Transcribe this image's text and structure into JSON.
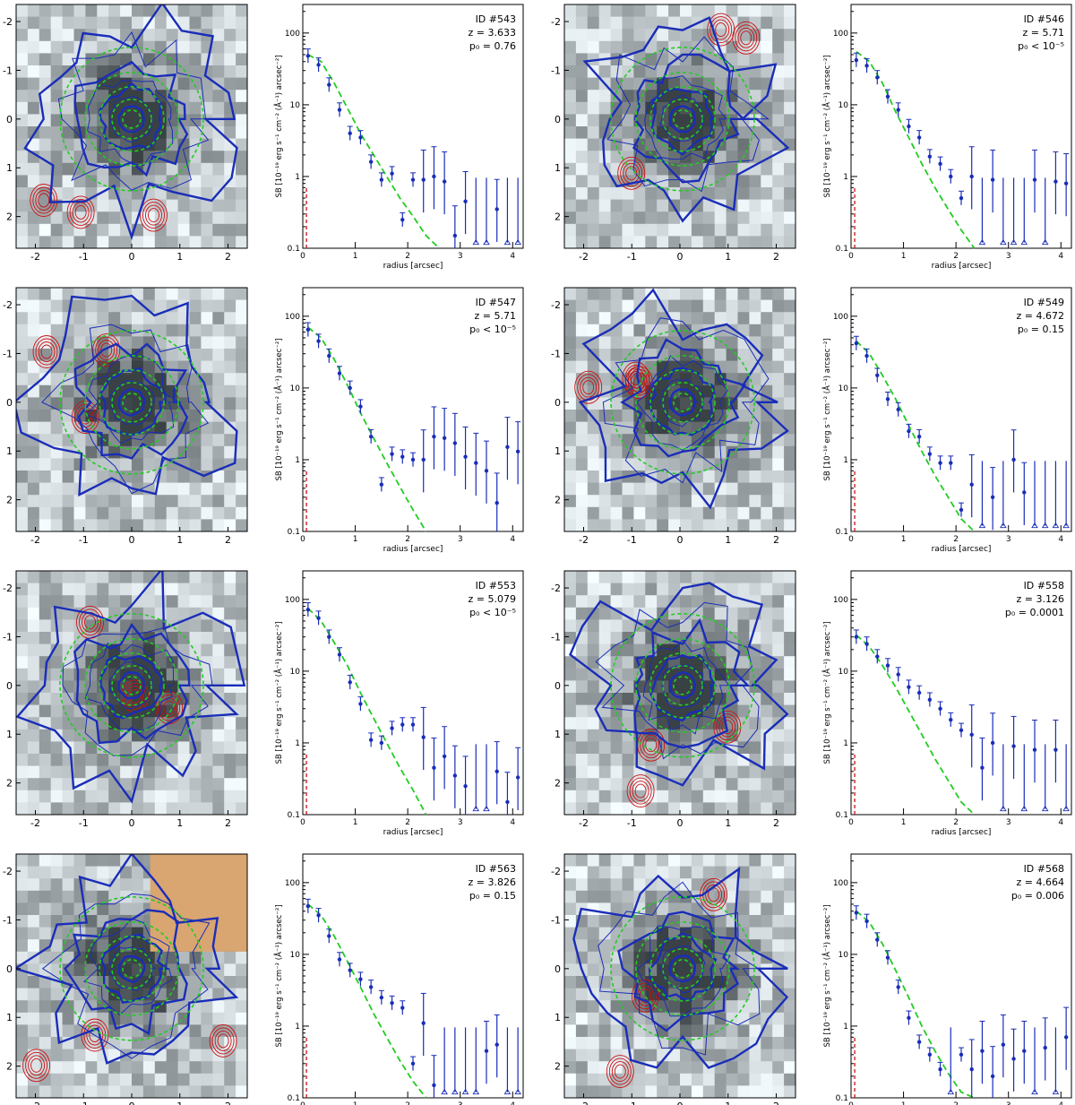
{
  "figure": {
    "image_axis_ticks": [
      "-2",
      "-1",
      "0",
      "1",
      "2"
    ],
    "profile_xlabel": "radius [arcsec]",
    "profile_ylabel": "SB [10⁻¹⁹ erg s⁻¹ cm⁻² (Å⁻¹) arcsec⁻²]",
    "profile_xticks": [
      "0",
      "1",
      "2",
      "3",
      "4"
    ],
    "profile_yticks": [
      "0.1",
      "1",
      "10",
      "100"
    ],
    "colors": {
      "lya_contour": "#1a2db8",
      "psf_model": "#22cc22",
      "continuum_contour": "#cc1111",
      "masked_region": "#d9a570",
      "data_points": "#1a2db8"
    }
  },
  "chart_data": [
    {
      "type": "scatter",
      "label_id": "ID #543",
      "label_z": "z = 3.633",
      "label_p0": "p₀ = 0.76",
      "xlabel": "radius [arcsec]",
      "ylabel": "SB",
      "xlim": [
        0,
        4.2
      ],
      "ylim": [
        0.1,
        250
      ],
      "yscale": "log",
      "x": [
        0.1,
        0.3,
        0.5,
        0.7,
        0.9,
        1.1,
        1.3,
        1.5,
        1.7,
        1.9,
        2.1,
        2.3,
        2.5,
        2.7,
        2.9,
        3.1,
        3.3,
        3.5,
        3.7,
        3.9,
        4.1
      ],
      "y": [
        48,
        36,
        19,
        8.5,
        4.0,
        3.5,
        1.6,
        0.9,
        1.1,
        0.25,
        0.9,
        0.9,
        1.0,
        0.85,
        0.15,
        0.45,
        0.12,
        0.12,
        0.35,
        0.12,
        0.12
      ],
      "psf": [
        50,
        40,
        20,
        9,
        4,
        2,
        1,
        0.5,
        0.28,
        0.15,
        0.1
      ]
    },
    {
      "type": "scatter",
      "label_id": "ID #546",
      "label_z": "z = 5.71",
      "label_p0": "p₀ < 10⁻⁵",
      "xlabel": "radius [arcsec]",
      "ylabel": "SB",
      "xlim": [
        0,
        4.2
      ],
      "ylim": [
        0.1,
        250
      ],
      "yscale": "log",
      "x": [
        0.1,
        0.3,
        0.5,
        0.7,
        0.9,
        1.1,
        1.3,
        1.5,
        1.7,
        1.9,
        2.1,
        2.3,
        2.5,
        2.7,
        2.9,
        3.1,
        3.3,
        3.5,
        3.7,
        3.9,
        4.1
      ],
      "y": [
        42,
        35,
        24,
        13,
        8.5,
        5.0,
        3.5,
        1.9,
        1.5,
        1.0,
        0.5,
        1.0,
        0.12,
        0.9,
        0.12,
        0.12,
        0.12,
        0.9,
        0.12,
        0.85,
        0.8
      ],
      "psf": [
        55,
        40,
        20,
        8,
        3.5,
        1.5,
        0.7,
        0.35,
        0.18,
        0.1
      ]
    },
    {
      "type": "scatter",
      "label_id": "ID #547",
      "label_z": "z = 5.71",
      "label_p0": "p₀ < 10⁻⁵",
      "xlabel": "radius [arcsec]",
      "ylabel": "SB",
      "xlim": [
        0,
        4.2
      ],
      "ylim": [
        0.1,
        250
      ],
      "yscale": "log",
      "x": [
        0.1,
        0.3,
        0.5,
        0.7,
        0.9,
        1.1,
        1.3,
        1.5,
        1.7,
        1.9,
        2.1,
        2.3,
        2.5,
        2.7,
        2.9,
        3.1,
        3.3,
        3.5,
        3.7,
        3.9,
        4.1
      ],
      "y": [
        65,
        45,
        28,
        16,
        10,
        5.5,
        2.1,
        0.45,
        1.2,
        1.1,
        1.0,
        1.0,
        2.1,
        2.0,
        1.7,
        1.1,
        0.9,
        0.7,
        0.25,
        1.5,
        1.3
      ],
      "psf": [
        70,
        50,
        25,
        11,
        4.5,
        2,
        0.9,
        0.42,
        0.2,
        0.1
      ]
    },
    {
      "type": "scatter",
      "label_id": "ID #549",
      "label_z": "z = 4.672",
      "label_p0": "p₀ = 0.15",
      "xlabel": "radius [arcsec]",
      "ylabel": "SB",
      "xlim": [
        0,
        4.2
      ],
      "ylim": [
        0.1,
        250
      ],
      "yscale": "log",
      "x": [
        0.1,
        0.3,
        0.5,
        0.7,
        0.9,
        1.1,
        1.3,
        1.5,
        1.7,
        1.9,
        2.1,
        2.3,
        2.5,
        2.7,
        2.9,
        3.1,
        3.3,
        3.5,
        3.7,
        3.9,
        4.1
      ],
      "y": [
        42,
        28,
        15,
        7,
        5,
        2.5,
        2.1,
        1.2,
        0.9,
        0.9,
        0.2,
        0.45,
        0.12,
        0.3,
        0.12,
        1.0,
        0.35,
        0.12,
        0.12,
        0.12,
        0.12
      ],
      "psf": [
        45,
        30,
        15,
        7,
        3,
        1.3,
        0.6,
        0.3,
        0.15,
        0.1
      ]
    },
    {
      "type": "scatter",
      "label_id": "ID #553",
      "label_z": "z = 5.079",
      "label_p0": "p₀ < 10⁻⁵",
      "xlabel": "radius [arcsec]",
      "ylabel": "SB",
      "xlim": [
        0,
        4.2
      ],
      "ylim": [
        0.1,
        250
      ],
      "yscale": "log",
      "x": [
        0.1,
        0.3,
        0.5,
        0.7,
        0.9,
        1.1,
        1.3,
        1.5,
        1.7,
        1.9,
        2.1,
        2.3,
        2.5,
        2.7,
        2.9,
        3.1,
        3.3,
        3.5,
        3.7,
        3.9,
        4.1
      ],
      "y": [
        72,
        55,
        30,
        17,
        7,
        3.5,
        1.1,
        1.0,
        1.6,
        1.8,
        1.8,
        1.2,
        0.45,
        0.65,
        0.35,
        0.25,
        0.12,
        0.12,
        0.4,
        0.15,
        0.33
      ],
      "psf": [
        75,
        50,
        25,
        12,
        5,
        2.2,
        1,
        0.45,
        0.22,
        0.1
      ]
    },
    {
      "type": "scatter",
      "label_id": "ID #558",
      "label_z": "z = 3.126",
      "label_p0": "p₀ = 0.0001",
      "xlabel": "radius [arcsec]",
      "ylabel": "SB",
      "xlim": [
        0,
        4.2
      ],
      "ylim": [
        0.1,
        250
      ],
      "yscale": "log",
      "x": [
        0.1,
        0.3,
        0.5,
        0.7,
        0.9,
        1.1,
        1.3,
        1.5,
        1.7,
        1.9,
        2.1,
        2.3,
        2.5,
        2.7,
        2.9,
        3.1,
        3.3,
        3.5,
        3.7,
        3.9,
        4.1
      ],
      "y": [
        30,
        24,
        16,
        12,
        9,
        6,
        5,
        4,
        3,
        2.1,
        1.5,
        1.3,
        0.45,
        1.0,
        0.12,
        0.9,
        0.12,
        0.8,
        0.12,
        0.8,
        0.12
      ],
      "psf": [
        32,
        22,
        12,
        6,
        2.8,
        1.3,
        0.6,
        0.3,
        0.15,
        0.1
      ]
    },
    {
      "type": "scatter",
      "label_id": "ID #563",
      "label_z": "z = 3.826",
      "label_p0": "p₀ = 0.15",
      "xlabel": "radius [arcsec]",
      "ylabel": "SB",
      "xlim": [
        0,
        4.2
      ],
      "ylim": [
        0.1,
        250
      ],
      "yscale": "log",
      "x": [
        0.1,
        0.3,
        0.5,
        0.7,
        0.9,
        1.1,
        1.3,
        1.5,
        1.7,
        1.9,
        2.1,
        2.3,
        2.5,
        2.7,
        2.9,
        3.1,
        3.3,
        3.5,
        3.7,
        3.9,
        4.1
      ],
      "y": [
        47,
        35,
        18,
        8.5,
        6,
        4.5,
        3.5,
        2.5,
        2.1,
        1.8,
        0.3,
        1.1,
        0.15,
        0.12,
        0.12,
        0.12,
        0.12,
        0.45,
        0.55,
        0.12,
        0.12
      ],
      "psf": [
        50,
        35,
        18,
        8,
        3.5,
        1.5,
        0.7,
        0.33,
        0.17,
        0.1
      ]
    },
    {
      "type": "scatter",
      "label_id": "ID #568",
      "label_z": "z = 4.664",
      "label_p0": "p₀ = 0.006",
      "xlabel": "radius [arcsec]",
      "ylabel": "SB",
      "xlim": [
        0,
        4.2
      ],
      "ylim": [
        0.1,
        250
      ],
      "yscale": "log",
      "x": [
        0.1,
        0.3,
        0.5,
        0.7,
        0.9,
        1.1,
        1.3,
        1.5,
        1.7,
        1.9,
        2.1,
        2.3,
        2.5,
        2.7,
        2.9,
        3.1,
        3.3,
        3.5,
        3.7,
        3.9,
        4.1
      ],
      "y": [
        38,
        29,
        16,
        9,
        3.5,
        1.3,
        0.6,
        0.4,
        0.25,
        0.12,
        0.4,
        0.25,
        0.45,
        0.2,
        0.55,
        0.35,
        0.45,
        0.12,
        0.5,
        0.12,
        0.7
      ],
      "psf": [
        40,
        28,
        14,
        6,
        2.5,
        1.0,
        0.45,
        0.22,
        0.12,
        0.1
      ]
    }
  ]
}
